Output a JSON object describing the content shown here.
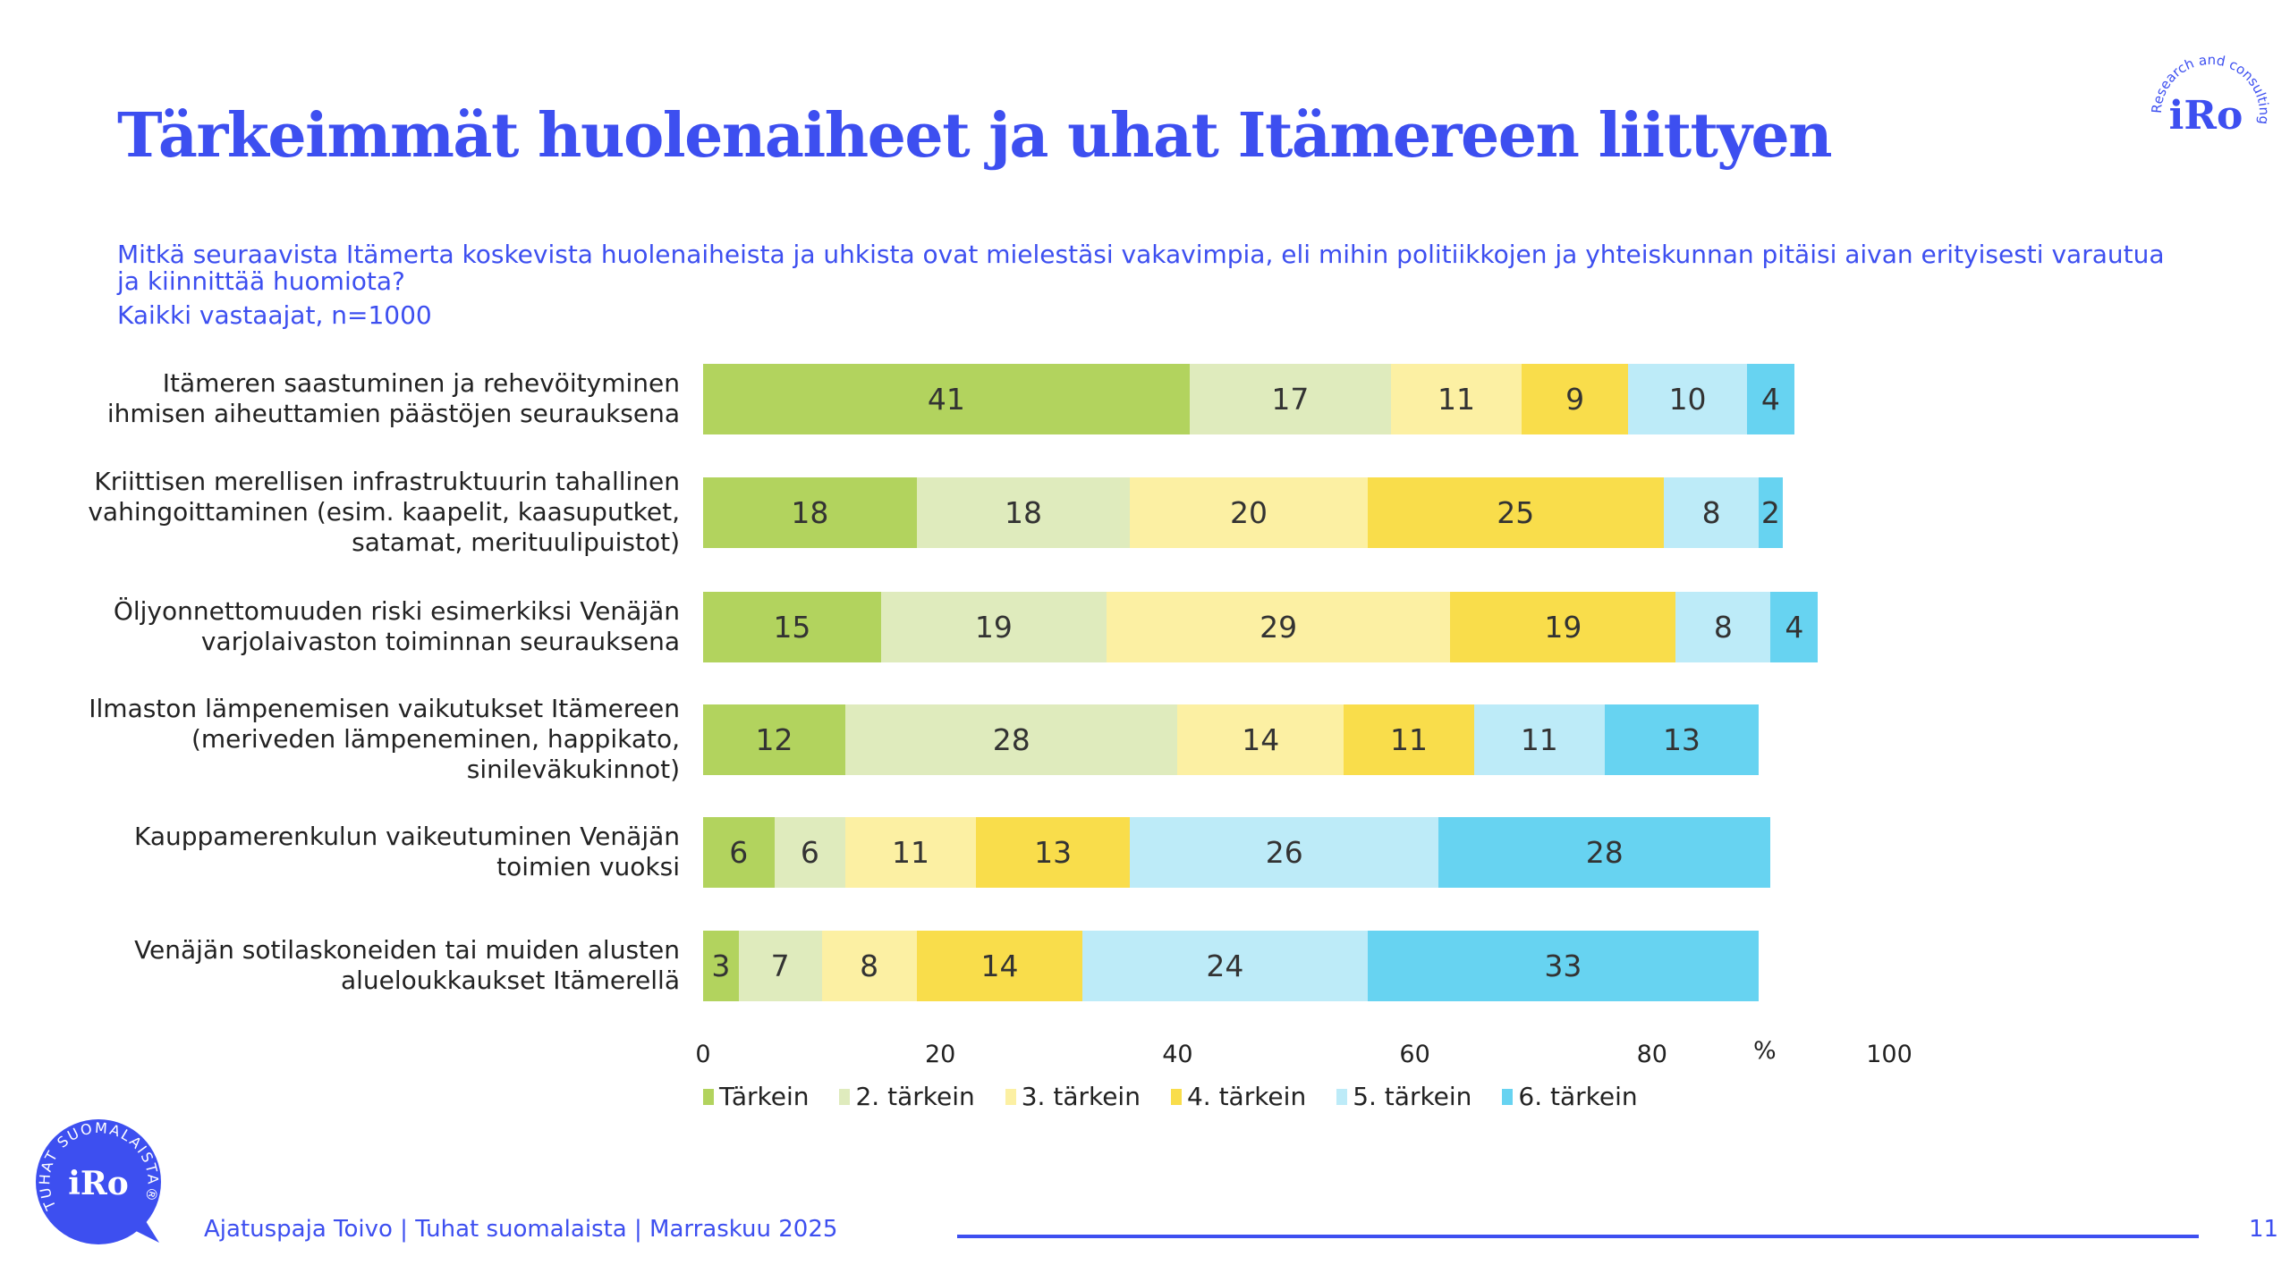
{
  "title": "Tärkeimmät huolenaiheet ja uhat Itämereen liittyen",
  "question": "Mitkä seuraavista Itämerta koskevista huolenaiheista ja uhkista ovat mielestäsi vakavimpia, eli mihin politiikkojen ja yhteiskunnan pitäisi aivan erityisesti varautua ja kiinnittää huomiota?",
  "base": "Kaikki vastaajat, n=1000",
  "logo_top": {
    "brand": "iRo",
    "tagline": "Research and consulting"
  },
  "logo_bottom": {
    "brand": "iRo",
    "ring": "TUHAT SUOMALAISTA®"
  },
  "footer": {
    "text": "Ajatuspaja Toivo | Tuhat suomalaista | Marraskuu 2025",
    "page": "11"
  },
  "chart_data": {
    "type": "bar",
    "orientation": "horizontal-stacked",
    "xlim": [
      0,
      100
    ],
    "xticks": [
      "0",
      "20",
      "40",
      "60",
      "80",
      "100"
    ],
    "xunit": "%",
    "categories": [
      "Itämeren saastuminen ja rehevöityminen ihmisen aiheuttamien päästöjen seurauksena",
      "Kriittisen merellisen infrastruktuurin tahallinen vahingoittaminen (esim. kaapelit, kaasuputket, satamat, merituulipuistot)",
      "Öljyonnettomuuden riski esimerkiksi Venäjän varjolaivaston toiminnan seurauksena",
      "Ilmaston lämpenemisen vaikutukset Itämereen (meriveden lämpeneminen, happikato, sinileväkukinnot)",
      "Kauppamerenkulun vaikeutuminen Venäjän toimien vuoksi",
      "Venäjän sotilaskoneiden tai muiden alusten alueloukkaukset Itämerellä"
    ],
    "series": [
      {
        "name": "Tärkein",
        "color": "#b2d35e",
        "values": [
          41,
          18,
          15,
          12,
          6,
          3
        ]
      },
      {
        "name": "2. tärkein",
        "color": "#dfebbd",
        "values": [
          17,
          18,
          19,
          28,
          6,
          7
        ]
      },
      {
        "name": "3. tärkein",
        "color": "#fcf0a3",
        "values": [
          11,
          20,
          29,
          14,
          11,
          8
        ]
      },
      {
        "name": "4. tärkein",
        "color": "#f9dd4b",
        "values": [
          9,
          25,
          19,
          11,
          13,
          14
        ]
      },
      {
        "name": "5. tärkein",
        "color": "#bdebf8",
        "values": [
          10,
          8,
          8,
          11,
          26,
          24
        ]
      },
      {
        "name": "6. tärkein",
        "color": "#67d3f1",
        "values": [
          4,
          2,
          4,
          13,
          28,
          33
        ]
      }
    ],
    "legend": "bottom"
  }
}
